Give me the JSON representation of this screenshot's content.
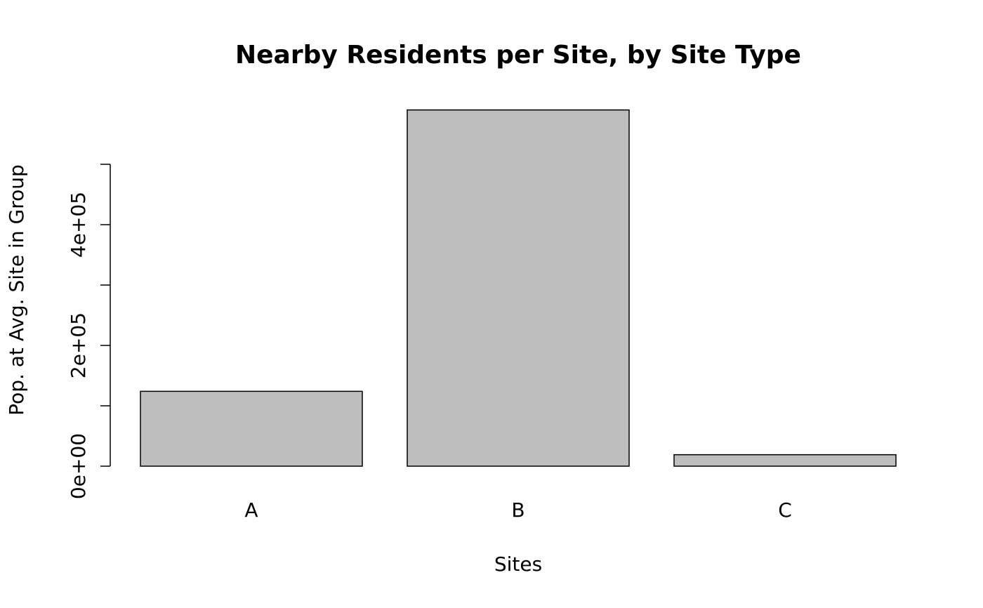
{
  "chart_data": {
    "type": "bar",
    "title": "Nearby Residents per Site, by Site Type",
    "x_label": "Sites",
    "y_label": "Pop. at Avg. Site in Group",
    "categories": [
      "A",
      "B",
      "C"
    ],
    "values": [
      124000,
      590000,
      19000
    ],
    "color": "#bebebe",
    "ylim": [
      0,
      600000
    ],
    "yticks": [
      {
        "value": 0,
        "label": "0e+00"
      },
      {
        "value": 100000,
        "label": null
      },
      {
        "value": 200000,
        "label": "2e+05"
      },
      {
        "value": 300000,
        "label": null
      },
      {
        "value": 400000,
        "label": "4e+05"
      },
      {
        "value": 500000,
        "label": null
      }
    ],
    "grid": false
  }
}
